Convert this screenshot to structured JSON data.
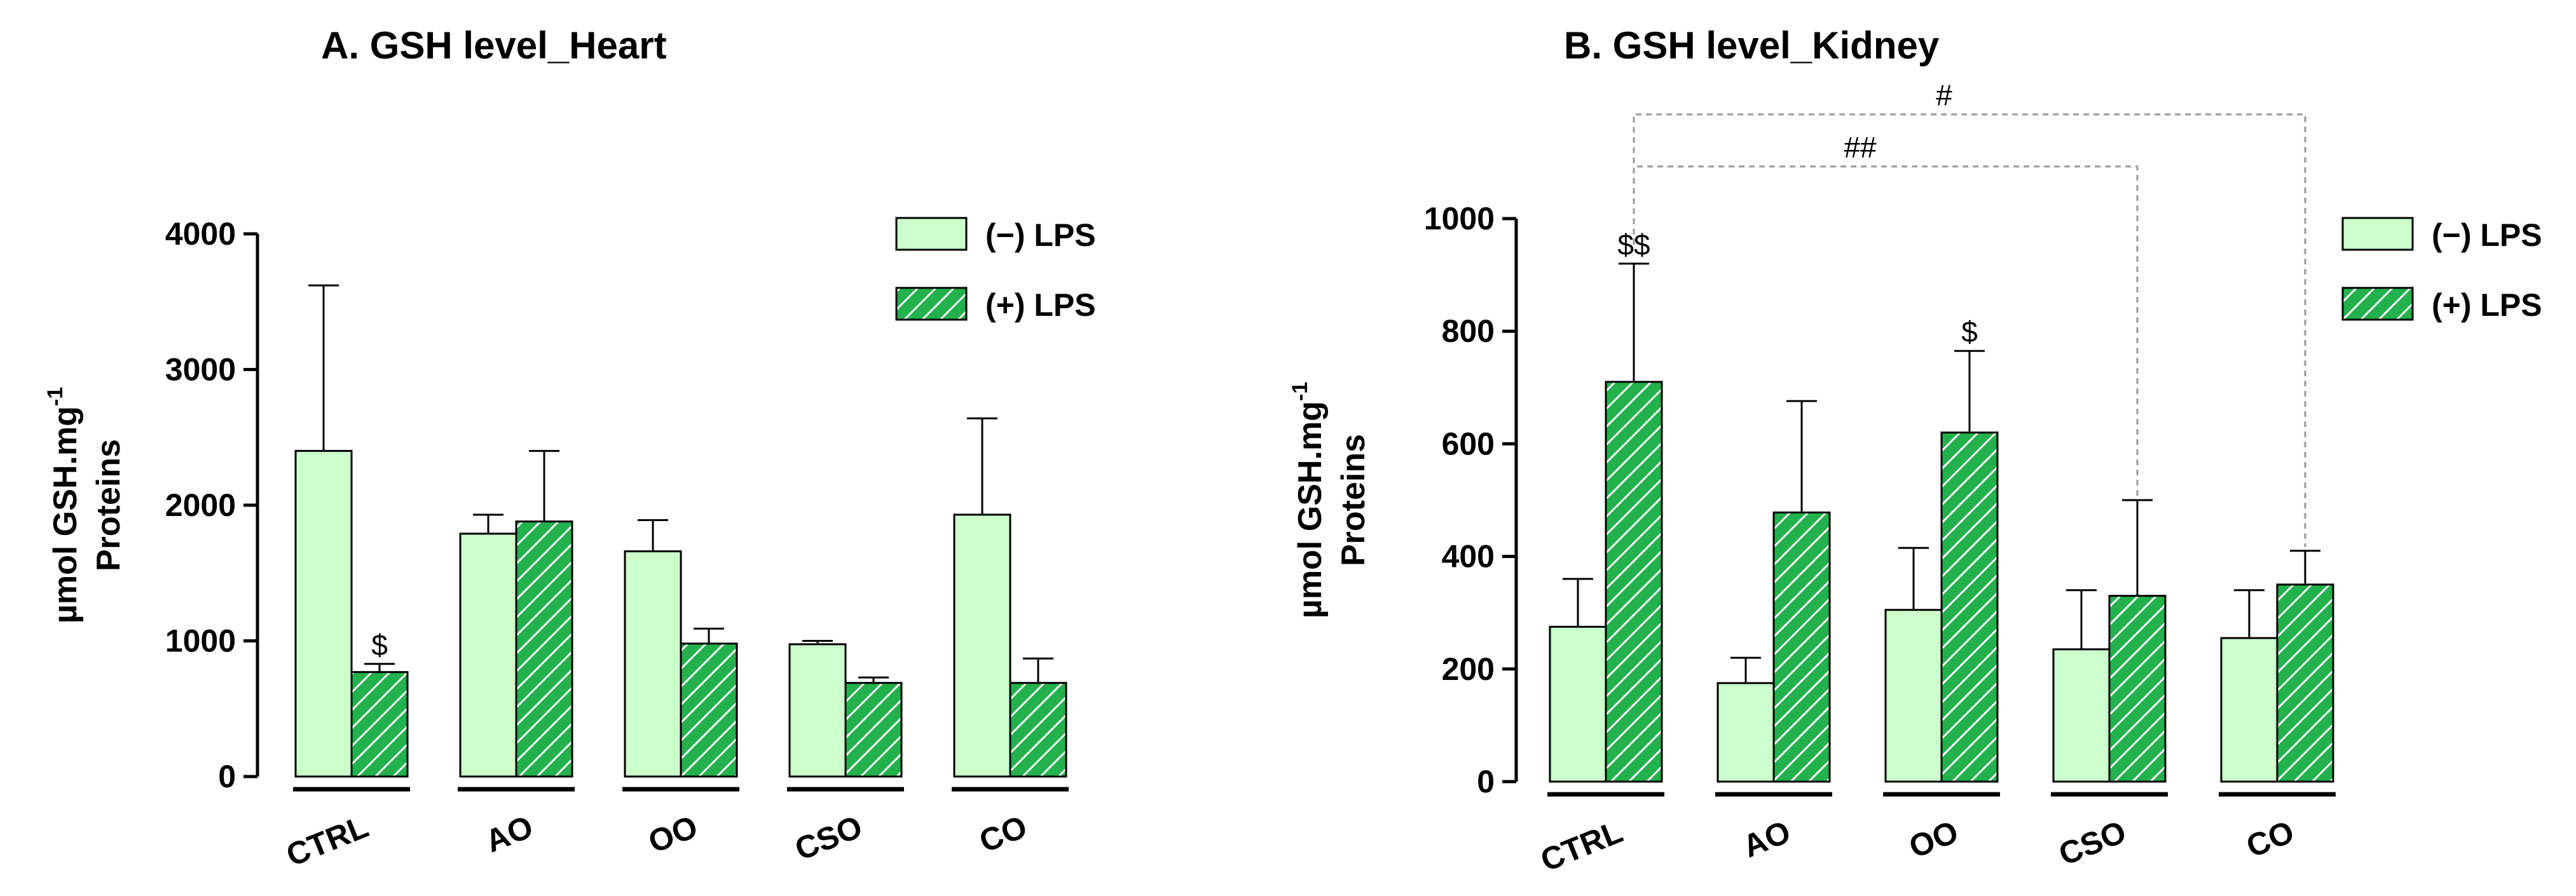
{
  "colors": {
    "neg_fill": "#ccffcc",
    "pos_fill": "#22b14c",
    "hatch": "#ffffff",
    "stroke": "#000000",
    "bracket": "#999999"
  },
  "chart_data": [
    {
      "type": "bar",
      "title": "A. GSH level_Heart",
      "ylabel_line1": "µmol GSH.mg",
      "ylabel_sup": "-1",
      "ylabel_line2": "Proteins",
      "ylim": [
        0,
        4000
      ],
      "yticks": [
        0,
        1000,
        2000,
        3000,
        4000
      ],
      "categories": [
        "CTRL",
        "AO",
        "OO",
        "CSO",
        "CO"
      ],
      "legend_position": "top-right",
      "series": [
        {
          "name": "(−) LPS",
          "values": [
            2400,
            1790,
            1660,
            975,
            1930
          ],
          "errors": [
            1220,
            140,
            230,
            25,
            710
          ],
          "labels": [
            "",
            "",
            "",
            "",
            ""
          ]
        },
        {
          "name": "(+) LPS",
          "values": [
            770,
            1880,
            980,
            690,
            690
          ],
          "errors": [
            60,
            520,
            110,
            40,
            180
          ],
          "labels": [
            "$",
            "",
            "",
            "",
            ""
          ]
        }
      ],
      "brackets": []
    },
    {
      "type": "bar",
      "title": "B. GSH level_Kidney",
      "ylabel_line1": "µmol GSH.mg",
      "ylabel_sup": "-1",
      "ylabel_line2": "Proteins",
      "ylim": [
        0,
        1000
      ],
      "yticks": [
        0,
        200,
        400,
        600,
        800,
        1000
      ],
      "categories": [
        "CTRL",
        "AO",
        "OO",
        "CSO",
        "CO"
      ],
      "legend_position": "top-right",
      "series": [
        {
          "name": "(−) LPS",
          "values": [
            275,
            175,
            305,
            235,
            255
          ],
          "errors": [
            85,
            45,
            110,
            105,
            85
          ],
          "labels": [
            "",
            "",
            "",
            "",
            ""
          ]
        },
        {
          "name": "(+) LPS",
          "values": [
            710,
            478,
            620,
            330,
            350
          ],
          "errors": [
            210,
            198,
            145,
            170,
            60
          ],
          "labels": [
            "$$",
            "",
            "$",
            "",
            ""
          ]
        }
      ],
      "brackets": [
        {
          "from": 0,
          "to": 3,
          "label": "##"
        },
        {
          "from": 0,
          "to": 4,
          "label": "#"
        }
      ]
    }
  ]
}
